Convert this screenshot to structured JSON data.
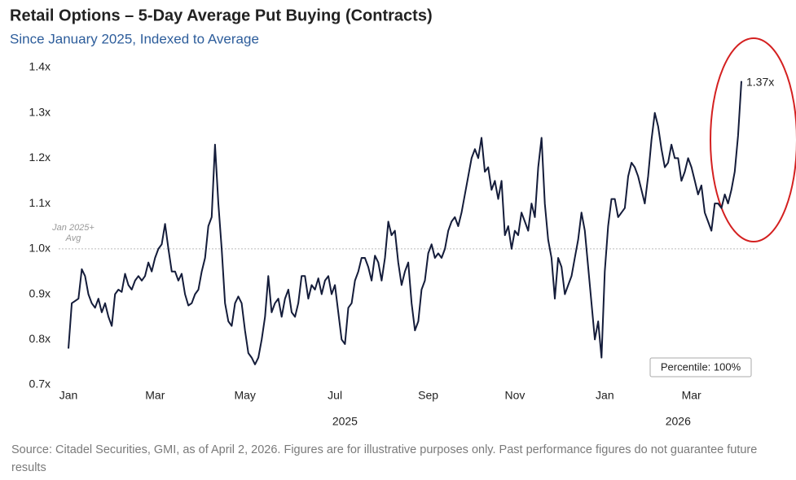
{
  "chart_data": {
    "type": "line",
    "title": "Retail Options – 5-Day Average Put Buying (Contracts)",
    "subtitle": "Since January 2025, Indexed to Average",
    "source": "Source: Citadel Securities, GMI, as of April 2, 2026. Figures are for illustrative purposes only. Past performance figures do not guarantee future results",
    "series": [
      {
        "name": "Retail Options – 5-Day Average Put Buying",
        "color": "#141c3a",
        "values": [
          0.78,
          0.88,
          0.885,
          0.89,
          0.955,
          0.94,
          0.9,
          0.88,
          0.87,
          0.89,
          0.86,
          0.88,
          0.85,
          0.83,
          0.9,
          0.91,
          0.905,
          0.945,
          0.92,
          0.91,
          0.93,
          0.94,
          0.93,
          0.94,
          0.97,
          0.95,
          0.98,
          1.0,
          1.01,
          1.055,
          1.0,
          0.95,
          0.95,
          0.93,
          0.945,
          0.9,
          0.875,
          0.88,
          0.9,
          0.91,
          0.95,
          0.98,
          1.05,
          1.07,
          1.23,
          1.1,
          1.0,
          0.88,
          0.84,
          0.83,
          0.88,
          0.895,
          0.88,
          0.82,
          0.77,
          0.76,
          0.745,
          0.76,
          0.8,
          0.85,
          0.94,
          0.86,
          0.88,
          0.89,
          0.85,
          0.89,
          0.91,
          0.86,
          0.85,
          0.88,
          0.94,
          0.94,
          0.89,
          0.92,
          0.91,
          0.935,
          0.9,
          0.93,
          0.94,
          0.9,
          0.92,
          0.86,
          0.8,
          0.79,
          0.87,
          0.88,
          0.93,
          0.95,
          0.98,
          0.98,
          0.96,
          0.93,
          0.985,
          0.97,
          0.93,
          0.98,
          1.06,
          1.03,
          1.04,
          0.97,
          0.92,
          0.95,
          0.97,
          0.88,
          0.82,
          0.84,
          0.91,
          0.93,
          0.99,
          1.01,
          0.98,
          0.99,
          0.98,
          1.0,
          1.04,
          1.06,
          1.07,
          1.05,
          1.08,
          1.12,
          1.16,
          1.2,
          1.22,
          1.2,
          1.245,
          1.17,
          1.18,
          1.13,
          1.15,
          1.11,
          1.15,
          1.03,
          1.05,
          1.0,
          1.04,
          1.03,
          1.08,
          1.06,
          1.04,
          1.1,
          1.07,
          1.18,
          1.245,
          1.1,
          1.02,
          0.98,
          0.89,
          0.98,
          0.96,
          0.9,
          0.92,
          0.94,
          0.98,
          1.02,
          1.08,
          1.04,
          0.96,
          0.88,
          0.8,
          0.84,
          0.76,
          0.95,
          1.05,
          1.11,
          1.11,
          1.07,
          1.08,
          1.09,
          1.16,
          1.19,
          1.18,
          1.16,
          1.13,
          1.1,
          1.16,
          1.24,
          1.3,
          1.27,
          1.22,
          1.18,
          1.19,
          1.23,
          1.2,
          1.2,
          1.15,
          1.17,
          1.2,
          1.18,
          1.15,
          1.12,
          1.14,
          1.08,
          1.06,
          1.04,
          1.1,
          1.1,
          1.09,
          1.12,
          1.1,
          1.13,
          1.17,
          1.25,
          1.37
        ],
        "value_labels": {
          "202": "1.37x"
        }
      }
    ],
    "xlim": [
      0,
      202
    ],
    "xticks": [
      {
        "value": 0,
        "label": "Jan"
      },
      {
        "value": 26,
        "label": "Mar"
      },
      {
        "value": 53,
        "label": "May"
      },
      {
        "value": 80,
        "label": "Jul"
      },
      {
        "value": 108,
        "label": "Sep"
      },
      {
        "value": 134,
        "label": "Nov"
      },
      {
        "value": 161,
        "label": "Jan"
      },
      {
        "value": 187,
        "label": "Mar"
      }
    ],
    "year_labels": [
      {
        "value": 83,
        "label": "2025"
      },
      {
        "value": 183,
        "label": "2026"
      }
    ],
    "ylim": [
      0.7,
      1.4
    ],
    "yticks": [
      {
        "value": 0.7,
        "label": "0.7x"
      },
      {
        "value": 0.8,
        "label": "0.8x"
      },
      {
        "value": 0.9,
        "label": "0.9x"
      },
      {
        "value": 1.0,
        "label": "1.0x"
      },
      {
        "value": 1.1,
        "label": "1.1x"
      },
      {
        "value": 1.2,
        "label": "1.2x"
      },
      {
        "value": 1.3,
        "label": "1.3x"
      },
      {
        "value": 1.4,
        "label": "1.4x"
      }
    ],
    "reference_line": {
      "value": 1.0,
      "label_lines": [
        "Jan 2025+",
        "Avg"
      ]
    },
    "annotation": "Percentile: 100%"
  }
}
